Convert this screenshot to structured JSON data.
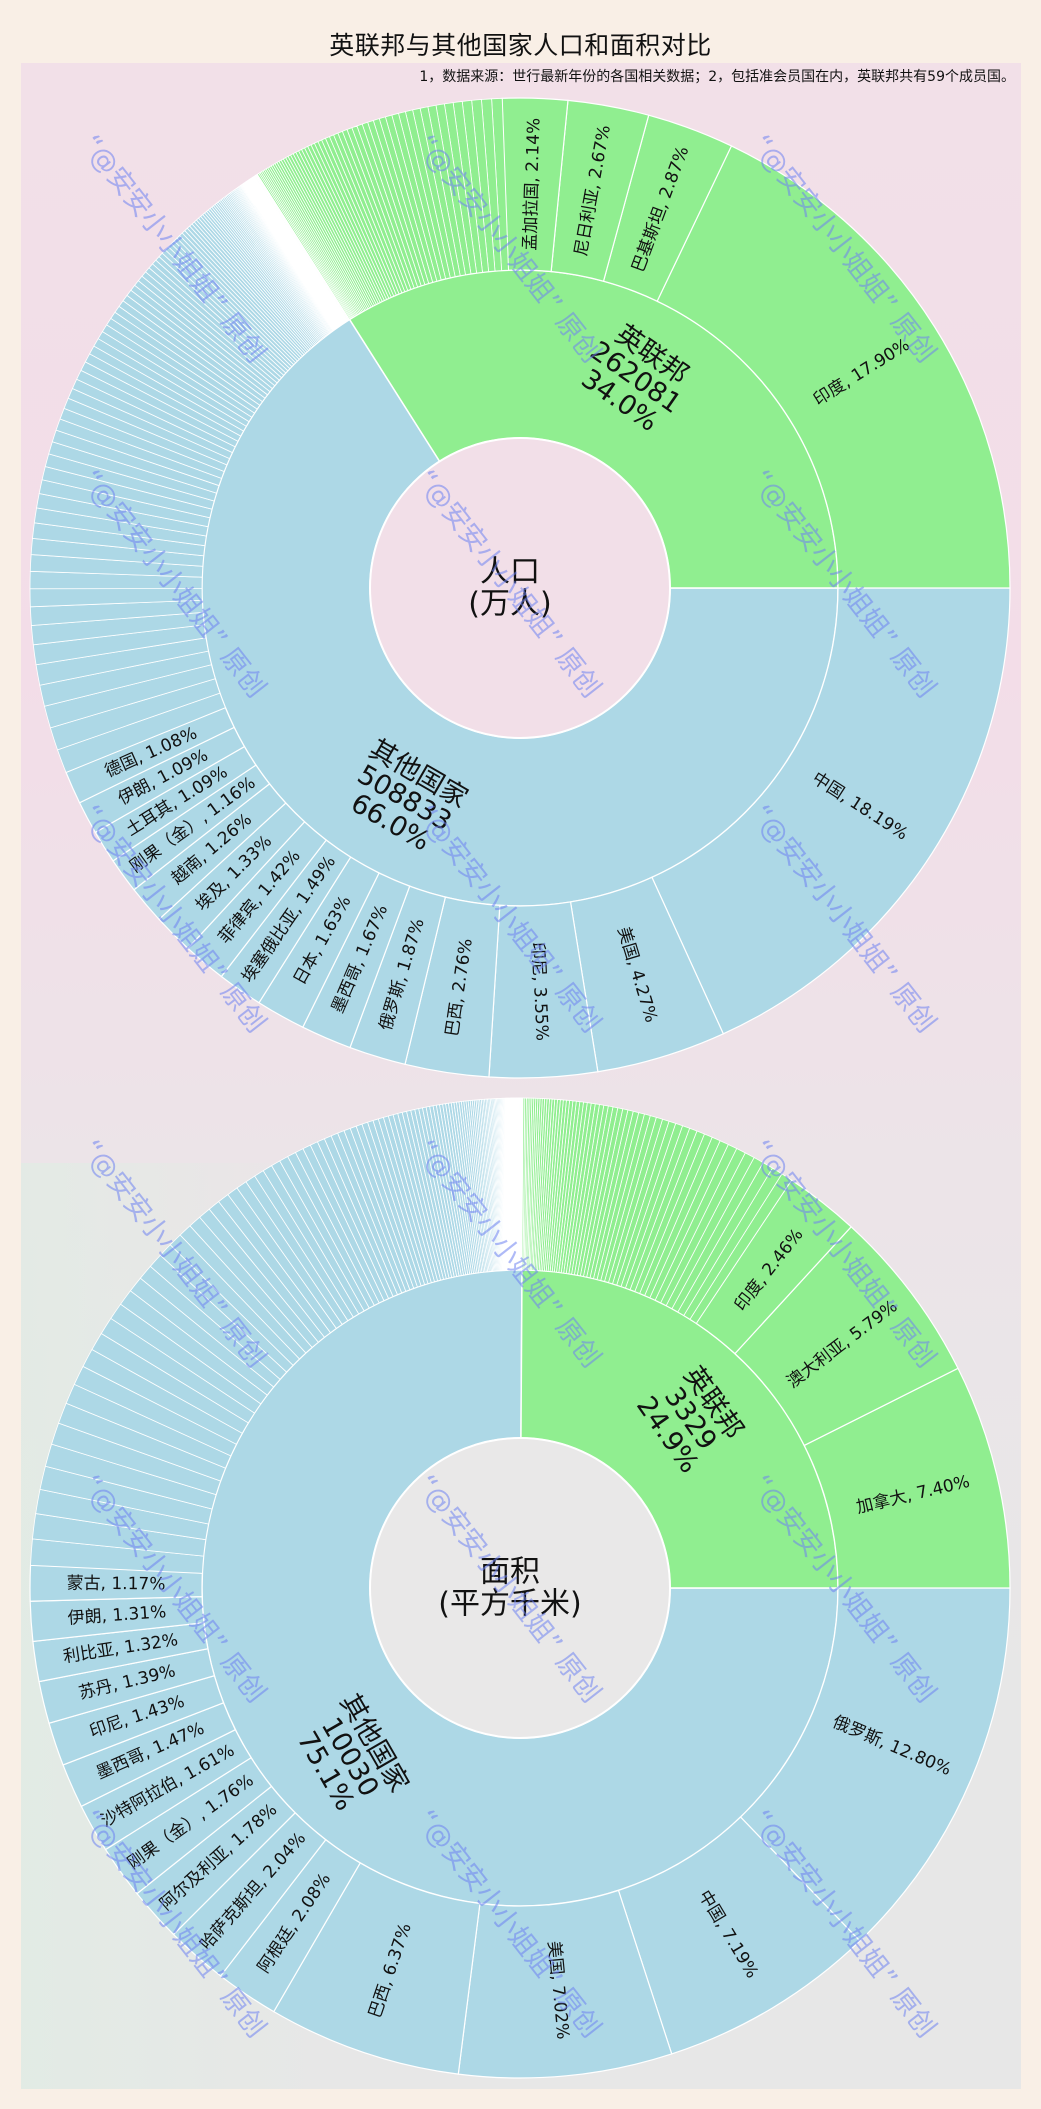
{
  "title": "英联邦与其他国家人口和面积对比",
  "subtitle": "1，数据来源：世行最新年份的各国相关数据；2，包括准会员国在内，英联邦共有59个成员国。",
  "watermark": "“@安安小小姐姐” 原创",
  "colors": {
    "commonwealth": "#90ee90",
    "others": "#add8e6",
    "page_bg": "#f9efe6",
    "separator": "#ffffff",
    "watermark": "#6e82f0"
  },
  "chart_data": [
    {
      "type": "sunburst",
      "title": "人口",
      "center_label": [
        "人口",
        "(万人)"
      ],
      "unit": "万人",
      "center_fill": "#f2dfe8",
      "groups": [
        {
          "name": "英联邦",
          "value": 262081,
          "percent": "34.0%",
          "share": 0.34,
          "color": "#90ee90",
          "label_lines": [
            "英联邦",
            "262081",
            "34.0%"
          ],
          "children": [
            {
              "name": "印度",
              "percent": 17.9
            },
            {
              "name": "巴基斯坦",
              "percent": 2.87
            },
            {
              "name": "尼日利亚",
              "percent": 2.67
            },
            {
              "name": "孟加拉国",
              "percent": 2.14
            }
          ],
          "unlabeled_children_count": 55
        },
        {
          "name": "其他国家",
          "value": 508833,
          "percent": "66.0%",
          "share": 0.66,
          "color": "#add8e6",
          "label_lines": [
            "其他国家",
            "508833",
            "66.0%"
          ],
          "children": [
            {
              "name": "中国",
              "percent": 18.19
            },
            {
              "name": "美国",
              "percent": 4.27
            },
            {
              "name": "印尼",
              "percent": 3.55
            },
            {
              "name": "巴西",
              "percent": 2.76
            },
            {
              "name": "俄罗斯",
              "percent": 1.87
            },
            {
              "name": "墨西哥",
              "percent": 1.67
            },
            {
              "name": "日本",
              "percent": 1.63
            },
            {
              "name": "埃塞俄比亚",
              "percent": 1.49
            },
            {
              "name": "菲律宾",
              "percent": 1.42
            },
            {
              "name": "埃及",
              "percent": 1.33
            },
            {
              "name": "越南",
              "percent": 1.26
            },
            {
              "name": "刚果（金）",
              "percent": 1.16
            },
            {
              "name": "土耳其",
              "percent": 1.09
            },
            {
              "name": "伊朗",
              "percent": 1.09
            },
            {
              "name": "德国",
              "percent": 1.08
            }
          ],
          "unlabeled_children_count": 140
        }
      ]
    },
    {
      "type": "sunburst",
      "title": "面积",
      "center_label": [
        "面积",
        "(平方千米)"
      ],
      "unit": "平方千米",
      "center_fill": "#e9e8e8",
      "groups": [
        {
          "name": "英联邦",
          "value": 3329,
          "percent": "24.9%",
          "share": 0.249,
          "color": "#90ee90",
          "label_lines": [
            "英联邦",
            "3329",
            "24.9%"
          ],
          "children": [
            {
              "name": "加拿大",
              "percent": 7.4
            },
            {
              "name": "澳大利亚",
              "percent": 5.79
            },
            {
              "name": "印度",
              "percent": 2.46
            }
          ],
          "unlabeled_children_count": 56
        },
        {
          "name": "其他国家",
          "value": 10030,
          "percent": "75.1%",
          "share": 0.751,
          "color": "#add8e6",
          "label_lines": [
            "其他国家",
            "10030",
            "75.1%"
          ],
          "children": [
            {
              "name": "俄罗斯",
              "percent": 12.8
            },
            {
              "name": "中国",
              "percent": 7.19
            },
            {
              "name": "美国",
              "percent": 7.02
            },
            {
              "name": "巴西",
              "percent": 6.37
            },
            {
              "name": "阿根廷",
              "percent": 2.08
            },
            {
              "name": "哈萨克斯坦",
              "percent": 2.04
            },
            {
              "name": "阿尔及利亚",
              "percent": 1.78
            },
            {
              "name": "刚果（金）",
              "percent": 1.76
            },
            {
              "name": "沙特阿拉伯",
              "percent": 1.61
            },
            {
              "name": "墨西哥",
              "percent": 1.47
            },
            {
              "name": "印尼",
              "percent": 1.43
            },
            {
              "name": "苏丹",
              "percent": 1.39
            },
            {
              "name": "利比亚",
              "percent": 1.32
            },
            {
              "name": "伊朗",
              "percent": 1.31
            },
            {
              "name": "蒙古",
              "percent": 1.17
            }
          ],
          "unlabeled_children_count": 140
        }
      ]
    }
  ]
}
